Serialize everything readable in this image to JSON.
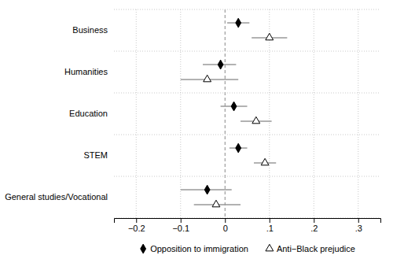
{
  "chart_data": {
    "type": "dot",
    "categories": [
      "Business",
      "Humanities",
      "Education",
      "STEM",
      "General studies/Vocational"
    ],
    "series": [
      {
        "name": "Opposition to immigration",
        "color": "#000000",
        "marker": "diamond",
        "values": [
          0.03,
          -0.01,
          0.02,
          0.03,
          -0.04
        ],
        "ci_lower": [
          0.005,
          -0.05,
          -0.01,
          0.01,
          -0.1
        ],
        "ci_upper": [
          0.055,
          0.025,
          0.05,
          0.05,
          0.015
        ]
      },
      {
        "name": "Anti−Black prejudice",
        "color": "#000000",
        "marker": "open-triangle",
        "values": [
          0.1,
          -0.04,
          0.07,
          0.09,
          -0.02
        ],
        "ci_lower": [
          0.06,
          -0.1,
          0.035,
          0.065,
          -0.07
        ],
        "ci_upper": [
          0.14,
          0.03,
          0.105,
          0.115,
          0.035
        ]
      }
    ],
    "xlim": [
      -0.25,
      0.35
    ],
    "xticks": [
      {
        "value": -0.2,
        "label": "−0.2"
      },
      {
        "value": -0.1,
        "label": "−0.1"
      },
      0,
      {
        "value": 0.1,
        "label": ".1"
      },
      {
        "value": 0.2,
        "label": ".2"
      },
      {
        "value": 0.3,
        "label": ".3"
      }
    ],
    "grid": true,
    "legend": "bottom"
  }
}
